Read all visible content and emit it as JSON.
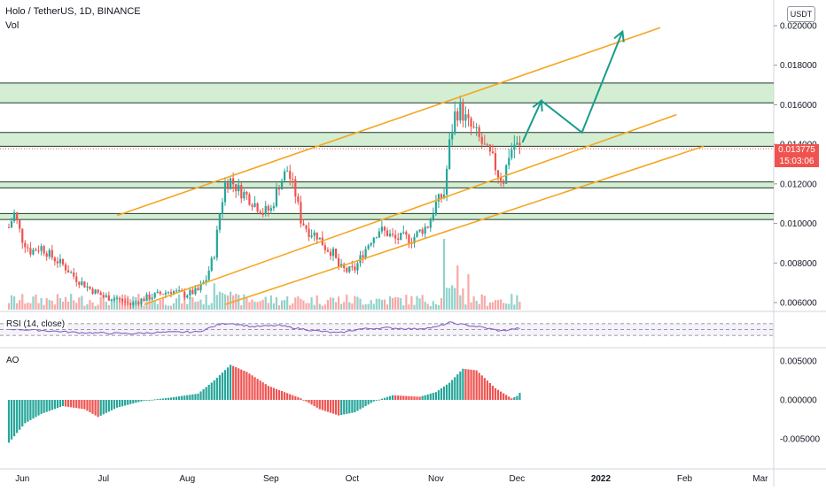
{
  "header": {
    "symbol_line": "Holo / TetherUS, 1D, BINANCE",
    "vol_label": "Vol",
    "currency": "USDT"
  },
  "panes": {
    "rsi_label": "RSI (14, close)",
    "ao_label": "AO"
  },
  "price_tags": {
    "last_price": "0.013775",
    "countdown": "15:03:06"
  },
  "colors": {
    "up": "#26a69a",
    "down": "#ef5350",
    "channel": "#f5a623",
    "zone_fill": "#b8e3b5",
    "arrow": "#1a9c8c",
    "rsi_line": "#7e57c2"
  },
  "chart_data": [
    {
      "type": "candlestick",
      "price_axis": {
        "ticks": [
          "0.020000",
          "0.018000",
          "0.016000",
          "0.014000",
          "0.012000",
          "0.010000",
          "0.008000",
          "0.006000"
        ],
        "range": [
          0.0055,
          0.0215
        ]
      },
      "time_axis": {
        "ticks": [
          "Jun",
          "Jul",
          "Aug",
          "Sep",
          "Oct",
          "Nov",
          "Dec",
          "2022",
          "Feb",
          "Mar"
        ],
        "bold_ticks": [
          "2022"
        ],
        "range_days": [
          0,
          282
        ]
      },
      "waypoints": [
        [
          0,
          0.0098
        ],
        [
          2,
          0.0105
        ],
        [
          5,
          0.0092
        ],
        [
          8,
          0.0086
        ],
        [
          12,
          0.0088
        ],
        [
          16,
          0.0083
        ],
        [
          20,
          0.0079
        ],
        [
          25,
          0.0072
        ],
        [
          30,
          0.0067
        ],
        [
          35,
          0.0063
        ],
        [
          40,
          0.0062
        ],
        [
          45,
          0.0059
        ],
        [
          50,
          0.0062
        ],
        [
          55,
          0.0064
        ],
        [
          60,
          0.0066
        ],
        [
          65,
          0.0064
        ],
        [
          70,
          0.0066
        ],
        [
          73,
          0.0072
        ],
        [
          76,
          0.0085
        ],
        [
          78,
          0.0105
        ],
        [
          80,
          0.012
        ],
        [
          82,
          0.0122
        ],
        [
          85,
          0.0117
        ],
        [
          88,
          0.0114
        ],
        [
          91,
          0.011
        ],
        [
          94,
          0.0106
        ],
        [
          97,
          0.0107
        ],
        [
          100,
          0.012
        ],
        [
          103,
          0.0127
        ],
        [
          106,
          0.0115
        ],
        [
          108,
          0.0102
        ],
        [
          111,
          0.0096
        ],
        [
          114,
          0.0094
        ],
        [
          117,
          0.0088
        ],
        [
          120,
          0.0085
        ],
        [
          122,
          0.0078
        ],
        [
          125,
          0.0076
        ],
        [
          128,
          0.0077
        ],
        [
          131,
          0.0085
        ],
        [
          134,
          0.0092
        ],
        [
          137,
          0.0097
        ],
        [
          140,
          0.0095
        ],
        [
          143,
          0.0092
        ],
        [
          146,
          0.0093
        ],
        [
          149,
          0.0092
        ],
        [
          152,
          0.0096
        ],
        [
          155,
          0.0099
        ],
        [
          158,
          0.011
        ],
        [
          161,
          0.0115
        ],
        [
          163,
          0.014
        ],
        [
          165,
          0.0155
        ],
        [
          167,
          0.0158
        ],
        [
          170,
          0.015
        ],
        [
          173,
          0.0145
        ],
        [
          176,
          0.0138
        ],
        [
          179,
          0.0132
        ],
        [
          181,
          0.0125
        ],
        [
          183,
          0.0122
        ],
        [
          185,
          0.0135
        ],
        [
          187,
          0.014
        ],
        [
          189,
          0.0138
        ]
      ],
      "volume_spikes": [
        [
          161,
          0.0095
        ],
        [
          166,
          0.008
        ],
        [
          170,
          0.0072
        ]
      ],
      "horizontal_levels": [
        0.0171,
        0.0161,
        0.0146,
        0.0139,
        0.0121,
        0.0118,
        0.0105,
        0.0102
      ],
      "zones": [
        [
          0.0161,
          0.0171
        ],
        [
          0.0139,
          0.0146
        ],
        [
          0.0118,
          0.0121
        ],
        [
          0.0102,
          0.0105
        ]
      ],
      "channel_lines": [
        {
          "from": [
            40,
            0.0104
          ],
          "to": [
            241,
            0.0199
          ]
        },
        {
          "from": [
            50,
            0.0059
          ],
          "to": [
            247,
            0.0155
          ]
        },
        {
          "from": [
            80,
            0.0059
          ],
          "to": [
            257,
            0.0139
          ]
        }
      ],
      "projection_path": [
        [
          190,
          0.0141
        ],
        [
          197,
          0.0162
        ],
        [
          212,
          0.0146
        ],
        [
          227,
          0.0197
        ]
      ]
    },
    {
      "type": "line",
      "name": "RSI (14, close)",
      "waypoints": [
        [
          0,
          52
        ],
        [
          10,
          48
        ],
        [
          25,
          40
        ],
        [
          45,
          36
        ],
        [
          55,
          40
        ],
        [
          70,
          42
        ],
        [
          78,
          68
        ],
        [
          82,
          72
        ],
        [
          90,
          60
        ],
        [
          100,
          64
        ],
        [
          106,
          55
        ],
        [
          114,
          45
        ],
        [
          122,
          38
        ],
        [
          130,
          52
        ],
        [
          140,
          56
        ],
        [
          150,
          52
        ],
        [
          158,
          58
        ],
        [
          163,
          74
        ],
        [
          167,
          68
        ],
        [
          175,
          58
        ],
        [
          182,
          45
        ],
        [
          189,
          55
        ]
      ]
    },
    {
      "type": "bar",
      "name": "AO",
      "value_axis": {
        "ticks": [
          "0.005000",
          "0.000000",
          "-0.005000"
        ],
        "range": [
          -0.0065,
          0.0055
        ]
      },
      "waypoints": [
        [
          0,
          -0.0055
        ],
        [
          6,
          -0.003
        ],
        [
          12,
          -0.0018
        ],
        [
          20,
          -0.0008
        ],
        [
          28,
          -0.0012
        ],
        [
          33,
          -0.0022
        ],
        [
          40,
          -0.001
        ],
        [
          50,
          -0.0001
        ],
        [
          60,
          0.0003
        ],
        [
          70,
          0.0008
        ],
        [
          76,
          0.0025
        ],
        [
          82,
          0.0045
        ],
        [
          88,
          0.0036
        ],
        [
          96,
          0.0018
        ],
        [
          102,
          0.001
        ],
        [
          108,
          0.0002
        ],
        [
          115,
          -0.0012
        ],
        [
          122,
          -0.002
        ],
        [
          128,
          -0.0016
        ],
        [
          135,
          -0.0002
        ],
        [
          142,
          0.0006
        ],
        [
          152,
          0.0004
        ],
        [
          158,
          0.001
        ],
        [
          163,
          0.0022
        ],
        [
          168,
          0.004
        ],
        [
          173,
          0.0038
        ],
        [
          180,
          0.0015
        ],
        [
          186,
          0.0002
        ],
        [
          188,
          0.0005
        ],
        [
          189,
          0.0009
        ]
      ]
    }
  ]
}
